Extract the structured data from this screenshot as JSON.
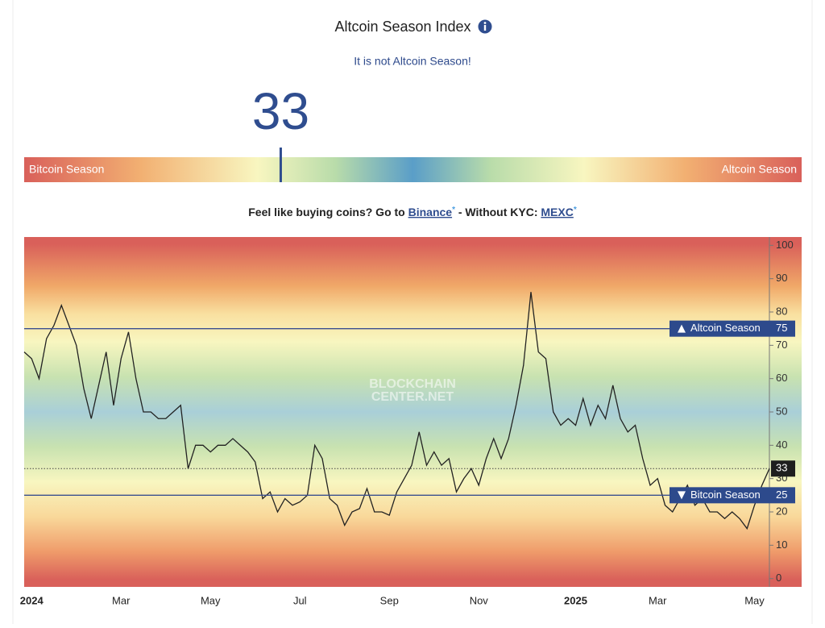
{
  "header": {
    "title": "Altcoin Season Index",
    "subtitle": "It is not Altcoin Season!"
  },
  "gauge": {
    "value": 33,
    "min": 0,
    "max": 100,
    "left_label": "Bitcoin Season",
    "right_label": "Altcoin Season"
  },
  "promo": {
    "text": "Feel like buying coins? Go to",
    "link1": "Binance",
    "middle": "- Without KYC:",
    "link2": "MEXC",
    "link_mark": "*"
  },
  "chart_data": {
    "type": "line",
    "watermark": [
      "BLOCKCHAIN",
      "CENTER.NET"
    ],
    "categories": [
      null,
      "2024",
      null,
      null,
      null,
      null,
      null,
      null,
      null,
      null,
      null,
      null,
      null,
      "Mar",
      null,
      null,
      null,
      null,
      null,
      null,
      null,
      null,
      null,
      null,
      null,
      "May",
      null,
      null,
      null,
      null,
      null,
      null,
      null,
      null,
      null,
      null,
      null,
      "Jul",
      null,
      null,
      null,
      null,
      null,
      null,
      null,
      null,
      null,
      null,
      null,
      "Sep",
      null,
      null,
      null,
      null,
      null,
      null,
      null,
      null,
      null,
      null,
      null,
      "Nov",
      null,
      null,
      null,
      null,
      null,
      null,
      null,
      null,
      null,
      null,
      null,
      null,
      "2025",
      null,
      null,
      null,
      null,
      null,
      null,
      null,
      null,
      null,
      null,
      "Mar",
      null,
      null,
      null,
      null,
      null,
      null,
      null,
      null,
      null,
      null,
      null,
      null,
      "May",
      null,
      null
    ],
    "values": [
      68,
      66,
      60,
      72,
      76,
      82,
      76,
      70,
      57,
      48,
      58,
      68,
      52,
      66,
      74,
      60,
      50,
      50,
      48,
      48,
      50,
      52,
      33,
      40,
      40,
      38,
      40,
      40,
      42,
      40,
      38,
      35,
      24,
      26,
      20,
      24,
      22,
      23,
      25,
      40,
      36,
      24,
      22,
      16,
      20,
      21,
      27,
      20,
      20,
      19,
      26,
      30,
      34,
      44,
      34,
      38,
      34,
      36,
      26,
      30,
      33,
      28,
      36,
      42,
      36,
      42,
      52,
      64,
      86,
      68,
      66,
      50,
      46,
      48,
      46,
      54,
      46,
      52,
      48,
      58,
      48,
      44,
      46,
      36,
      28,
      30,
      22,
      20,
      24,
      28,
      22,
      24,
      20,
      20,
      18,
      20,
      18,
      15,
      22,
      28,
      33
    ],
    "color": "#222222",
    "ylim": [
      -2.5,
      102.5
    ],
    "yticks": [
      0,
      10,
      20,
      30,
      40,
      50,
      60,
      70,
      80,
      90,
      100
    ],
    "reference_lines": [
      {
        "value": 75,
        "label": "Altcoin Season"
      },
      {
        "value": 25,
        "label": "Bitcoin Season"
      }
    ]
  }
}
